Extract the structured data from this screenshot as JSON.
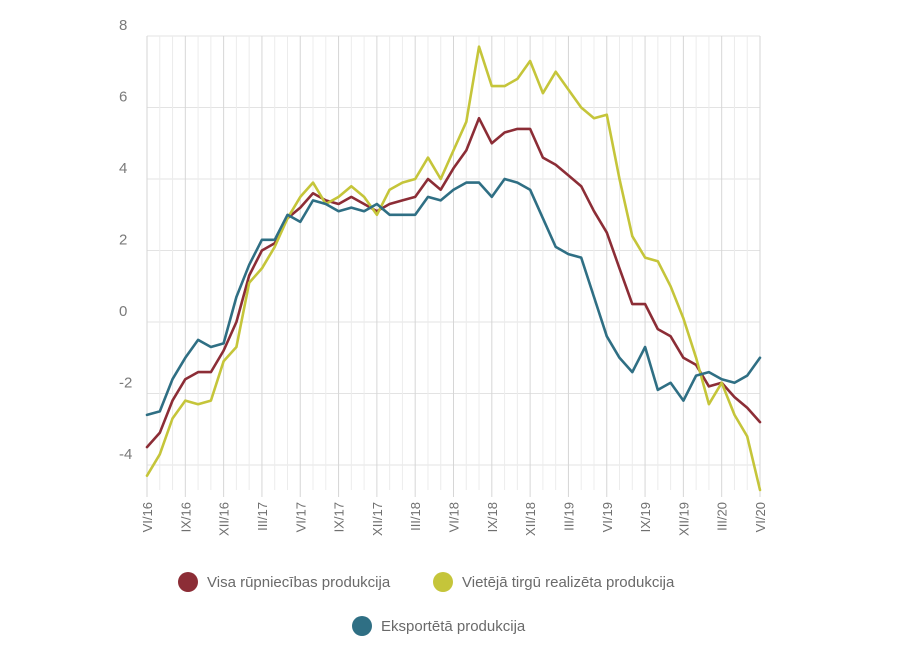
{
  "chart_data": {
    "type": "line",
    "title": "",
    "xlabel": "",
    "ylabel": "",
    "ylim": [
      -5,
      8
    ],
    "yticks": [
      8,
      6,
      4,
      2,
      0,
      -2,
      -4
    ],
    "x_tick_labels": [
      "VI/16",
      "IX/16",
      "XII/16",
      "III/17",
      "VI/17",
      "IX/17",
      "XII/17",
      "III/18",
      "VI/18",
      "IX/18",
      "XII/18",
      "III/19",
      "VI/19",
      "IX/19",
      "XII/19",
      "III/20",
      "VI/20"
    ],
    "x": [
      "VI/16",
      "VII/16",
      "VIII/16",
      "IX/16",
      "X/16",
      "XI/16",
      "XII/16",
      "I/17",
      "II/17",
      "III/17",
      "IV/17",
      "V/17",
      "VI/17",
      "VII/17",
      "VIII/17",
      "IX/17",
      "X/17",
      "XI/17",
      "XII/17",
      "I/18",
      "II/18",
      "III/18",
      "IV/18",
      "V/18",
      "VI/18",
      "VII/18",
      "VIII/18",
      "IX/18",
      "X/18",
      "XI/18",
      "XII/18",
      "I/19",
      "II/19",
      "III/19",
      "IV/19",
      "V/19",
      "VI/19",
      "VII/19",
      "VIII/19",
      "IX/19",
      "X/19",
      "XI/19",
      "XII/19",
      "I/20",
      "II/20",
      "III/20",
      "IV/20",
      "V/20",
      "VI/20"
    ],
    "grid": "horizontal",
    "legend_position": "bottom",
    "series": [
      {
        "name": "Visa rūpniecības produkcija",
        "color": "#8c2d36",
        "values": [
          -3.5,
          -3.1,
          -2.2,
          -1.6,
          -1.4,
          -1.4,
          -0.8,
          0.0,
          1.3,
          2.0,
          2.2,
          2.9,
          3.2,
          3.6,
          3.4,
          3.3,
          3.5,
          3.3,
          3.1,
          3.3,
          3.4,
          3.5,
          4.0,
          3.7,
          4.3,
          4.8,
          5.7,
          5.0,
          5.3,
          5.4,
          5.4,
          4.6,
          4.4,
          4.1,
          3.8,
          3.1,
          2.5,
          1.5,
          0.5,
          0.5,
          -0.2,
          -0.4,
          -1.0,
          -1.2,
          -1.8,
          -1.7,
          -2.1,
          -2.4,
          -2.8
        ]
      },
      {
        "name": "Vietējā tirgū realizēta produkcija",
        "color": "#c5c53a",
        "values": [
          -4.3,
          -3.7,
          -2.7,
          -2.2,
          -2.3,
          -2.2,
          -1.1,
          -0.7,
          1.1,
          1.5,
          2.1,
          2.9,
          3.5,
          3.9,
          3.3,
          3.5,
          3.8,
          3.5,
          3.0,
          3.7,
          3.9,
          4.0,
          4.6,
          4.0,
          4.8,
          5.6,
          7.7,
          6.6,
          6.6,
          6.8,
          7.3,
          6.4,
          7.0,
          6.5,
          6.0,
          5.7,
          5.8,
          4.0,
          2.4,
          1.8,
          1.7,
          1.0,
          0.1,
          -1.0,
          -2.3,
          -1.7,
          -2.6,
          -3.2,
          -4.7
        ]
      },
      {
        "name": "Eksportētā produkcija",
        "color": "#2f6f84",
        "values": [
          -2.6,
          -2.5,
          -1.6,
          -1.0,
          -0.5,
          -0.7,
          -0.6,
          0.7,
          1.6,
          2.3,
          2.3,
          3.0,
          2.8,
          3.4,
          3.3,
          3.1,
          3.2,
          3.1,
          3.3,
          3.0,
          3.0,
          3.0,
          3.5,
          3.4,
          3.7,
          3.9,
          3.9,
          3.5,
          4.0,
          3.9,
          3.7,
          2.9,
          2.1,
          1.9,
          1.8,
          0.7,
          -0.4,
          -1.0,
          -1.4,
          -0.7,
          -1.9,
          -1.7,
          -2.2,
          -1.5,
          -1.4,
          -1.6,
          -1.7,
          -1.5,
          -1.0
        ]
      }
    ]
  }
}
